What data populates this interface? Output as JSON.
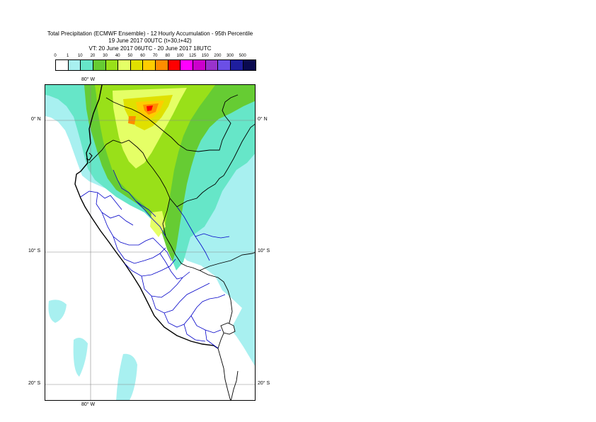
{
  "titles": {
    "line1": "Total Precipitation (ECMWF Ensemble) - 12 Hourly Accumulation - 95th Percentile",
    "line2": "19 June 2017 00UTC (t+30,t+42)",
    "line3": "VT: 20 June 2017 06UTC - 20 June 2017 18UTC"
  },
  "legend": {
    "ticks": [
      "0",
      "1",
      "10",
      "20",
      "30",
      "40",
      "50",
      "60",
      "70",
      "80",
      "100",
      "125",
      "150",
      "200",
      "300",
      "500"
    ],
    "colors": [
      "#ffffff",
      "#a8f0f0",
      "#66e6c8",
      "#66cc33",
      "#99e019",
      "#e5ff66",
      "#e0e000",
      "#ffcc00",
      "#ff8c00",
      "#ff0000",
      "#ff00ff",
      "#cc00cc",
      "#9933cc",
      "#6b4fe6",
      "#1e1e9e",
      "#0a0a50"
    ]
  },
  "map": {
    "lon_label_top": "80° W",
    "lon_label_bottom": "80° W",
    "lat_labels_left": [
      "0° N",
      "10° S",
      "20° S"
    ],
    "lat_labels_right": [
      "0° N",
      "10° S",
      "20° S"
    ]
  }
}
